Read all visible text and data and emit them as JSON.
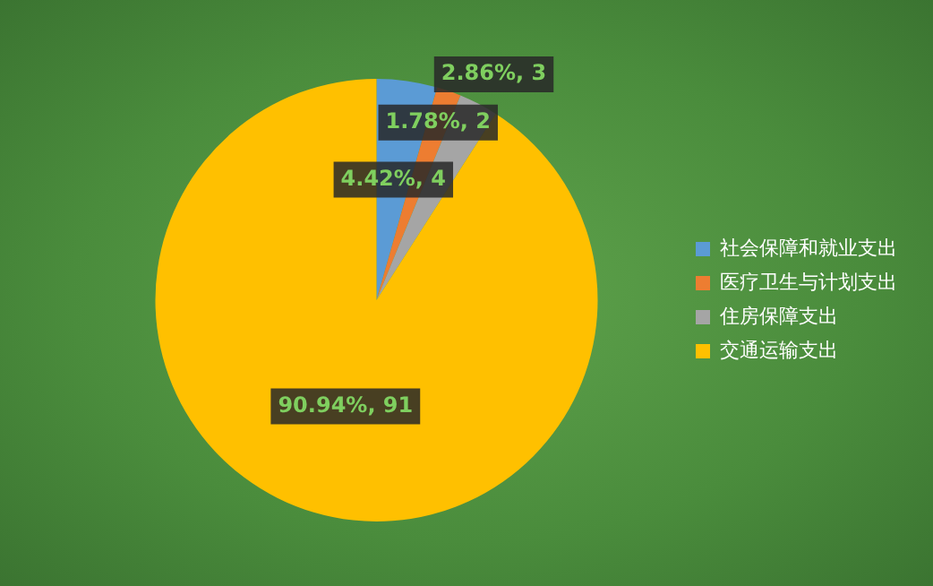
{
  "chart_data": {
    "type": "pie",
    "categories": [
      "社会保障和就业支出",
      "医疗卫生与计划支出",
      "住房保障支出",
      "交通运输支出"
    ],
    "values": [
      4.42,
      1.78,
      2.86,
      90.94
    ],
    "colors": [
      "#5b9bd5",
      "#ed7d31",
      "#a5a5a5",
      "#ffc000"
    ],
    "value_labels": [
      "4.42%, 4",
      "1.78%, 2",
      "2.86%, 3",
      "90.94%, 91"
    ],
    "legend": "right"
  }
}
